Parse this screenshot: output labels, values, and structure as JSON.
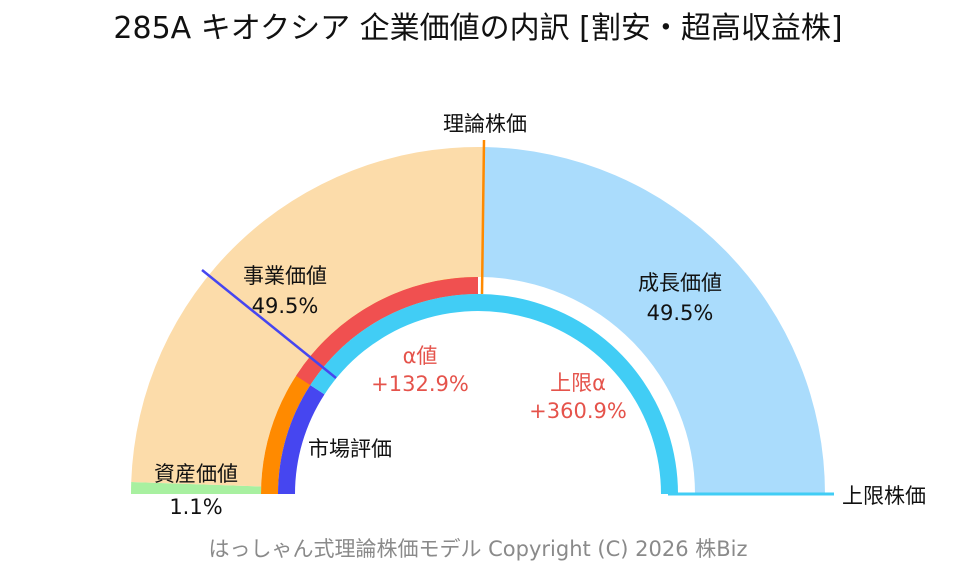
{
  "chart_data": {
    "type": "half-donut",
    "title": "285A キオクシア 企業価値の内訳 [割安・超高収益株]",
    "footer": "はっしゃん式理論株価モデル Copyright (C) 2026 株Biz",
    "segments": [
      {
        "name": "資産価値",
        "value": 1.1,
        "label": "1.1%",
        "color": "#a8f0a0"
      },
      {
        "name": "事業価値",
        "value": 49.5,
        "label": "49.5%",
        "color": "#fcdcaa"
      },
      {
        "name": "成長価値",
        "value": 49.5,
        "label": "49.5%",
        "color": "#aadcfc"
      }
    ],
    "inner_arcs": [
      {
        "name": "市場評価",
        "color": "#4646f0"
      },
      {
        "name": "α値",
        "value": "+132.9%",
        "color": "#f05050"
      },
      {
        "name": "上限α",
        "value": "+360.9%",
        "color": "#41cdf5"
      }
    ],
    "markers": {
      "theoretical_price": "理論株価",
      "market_label": "市場評価",
      "upper_limit": "上限株価"
    },
    "colors": {
      "orange": "#ff8a00",
      "market_line": "#4646f0",
      "alpha_text": "#e5534b"
    }
  }
}
